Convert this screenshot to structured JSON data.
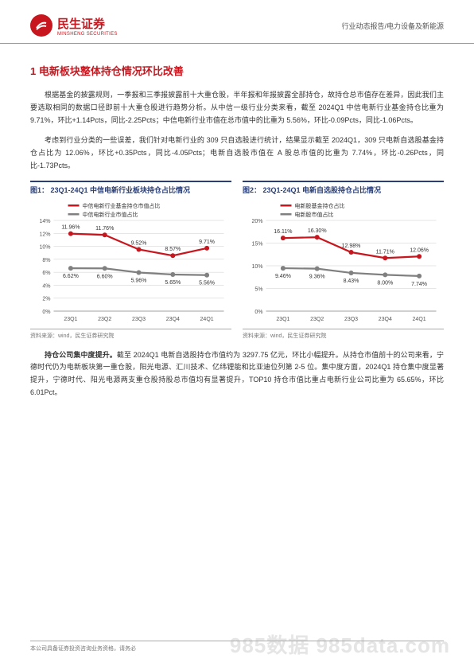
{
  "header": {
    "logo_main": "民生证券",
    "logo_sub": "MINSHENG SECURITIES",
    "right_text": "行业动态报告/电力设备及新能源"
  },
  "sections": {
    "h1": "1 电新板块整体持仓情况环比改善",
    "p1": "根据基金的披露规则，一季报和三季报披露前十大重仓股，半年报和年报披露全部持仓，故持仓总市值存在差异，因此我们主要选取相同的数据口径即前十大重仓股进行趋势分析。从中信一级行业分类来看，截至 2024Q1 中信电新行业基金持仓比重为 9.71%，环比+1.14Pcts，同比-2.25Pcts；中信电新行业市值在总市值中的比重为 5.56%，环比-0.09Pcts，同比-1.06Pcts。",
    "p2": "考虑到行业分类的一些误差，我们针对电新行业的 309 只自选股进行统计，结果显示截至 2024Q1，309 只电新自选股基金持仓占比为 12.06%，环比+0.35Pcts，同比-4.05Pcts；电新自选股市值在 A 股总市值的比重为 7.74%，环比-0.26Pcts，同比-1.73Pcts。",
    "p3_prefix": "持仓公司集中度提升。",
    "p3": "截至 2024Q1 电新自选股持仓市值约为 3297.75 亿元，环比小幅提升。从持仓市值前十的公司来看，宁德时代仍为电新板块第一重仓股，阳光电源、汇川技术、亿纬锂能和比亚迪位列第 2-5 位。集中度方面，2024Q1 持仓集中度显著提升，宁德时代、阳光电源两支重仓股持股总市值均有显著提升，TOP10 持仓市值比重占电新行业公司比重为 65.65%，环比 6.01Pct。"
  },
  "chart1": {
    "title": "图1： 23Q1-24Q1 中信电新行业板块持仓占比情况",
    "footer": "资料来源：wind，民生证券研究院",
    "legend1": "中信电新行业基金持仓市值占比",
    "legend2": "中信电新行业市值占比",
    "categories": [
      "23Q1",
      "23Q2",
      "23Q3",
      "23Q4",
      "24Q1"
    ],
    "series1_values": [
      11.96,
      11.76,
      9.52,
      8.57,
      9.71
    ],
    "series2_values": [
      6.62,
      6.6,
      5.96,
      5.65,
      5.56
    ],
    "series1_labels": [
      "11.96%",
      "11.76%",
      "9.52%",
      "8.57%",
      "9.71%"
    ],
    "series2_labels": [
      "6.62%",
      "6.60%",
      "5.96%",
      "5.65%",
      "5.56%"
    ],
    "ylim": [
      0,
      14
    ],
    "ytick_step": 2,
    "series1_color": "#c7161e",
    "series2_color": "#808080",
    "line_width": 2.2,
    "label_fontsize": 7,
    "axis_fontsize": 7,
    "grid_color": "#cccccc",
    "marker_size": 3
  },
  "chart2": {
    "title": "图2： 23Q1-24Q1 电新自选股持仓占比情况",
    "footer": "资料来源：wind，民生证券研究院",
    "legend1": "电新股基金持仓占比",
    "legend2": "电新股市值占比",
    "categories": [
      "23Q1",
      "23Q2",
      "23Q3",
      "23Q4",
      "24Q1"
    ],
    "series1_values": [
      16.11,
      16.3,
      12.98,
      11.71,
      12.06
    ],
    "series2_values": [
      9.46,
      9.36,
      8.43,
      8.0,
      7.74
    ],
    "series1_labels": [
      "16.11%",
      "16.30%",
      "12.98%",
      "11.71%",
      "12.06%"
    ],
    "series2_labels": [
      "9.46%",
      "9.36%",
      "8.43%",
      "8.00%",
      "7.74%"
    ],
    "ylim": [
      0,
      20
    ],
    "ytick_step": 5,
    "series1_color": "#c7161e",
    "series2_color": "#808080",
    "line_width": 2.2,
    "label_fontsize": 7,
    "axis_fontsize": 7,
    "grid_color": "#cccccc",
    "marker_size": 3
  },
  "footer": {
    "left": "本公司具备证券投资咨询业务资格，请务必",
    "right": "",
    "watermark": "985数据 985data.com"
  }
}
